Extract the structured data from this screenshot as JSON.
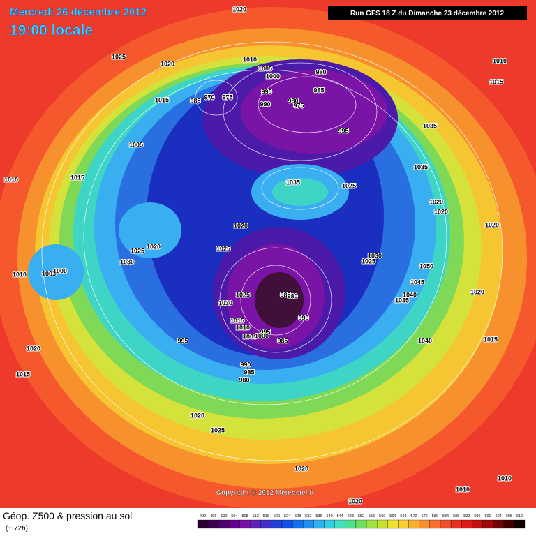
{
  "header": {
    "date": "Mercredi 26 décembre 2012",
    "time": "19:00 locale",
    "run": "Run GFS 18 Z du Dimanche 23 décembre 2012"
  },
  "map": {
    "pressure_labels": [
      1020,
      1025,
      1020,
      1010,
      1005,
      1000,
      980,
      985,
      995,
      990,
      980,
      975,
      970,
      985,
      975,
      1015,
      995,
      1035,
      1010,
      1015,
      1005,
      1010,
      1015,
      1035,
      1025,
      1035,
      1020,
      1020,
      1020,
      1020,
      1025,
      1020,
      1025,
      1030,
      1010,
      1005,
      1000,
      1030,
      1025,
      1050,
      1045,
      1040,
      1035,
      1025,
      1030,
      985,
      980,
      990,
      1015,
      1010,
      1005,
      995,
      1000,
      985,
      995,
      1040,
      1015,
      1020,
      1020,
      1015,
      990,
      985,
      980,
      1020,
      1025,
      1020,
      1010,
      1010,
      1020
    ],
    "copyright": "Copyright © 2012 Meteociel.fr"
  },
  "legend": {
    "title": "Géop. Z500 & pression au sol",
    "lead": "(+ 72h)",
    "scale": [
      492,
      496,
      500,
      504,
      508,
      512,
      516,
      520,
      524,
      528,
      532,
      536,
      540,
      544,
      548,
      552,
      556,
      560,
      564,
      568,
      572,
      576,
      580,
      584,
      588,
      592,
      596,
      600,
      604,
      608,
      612
    ]
  }
}
